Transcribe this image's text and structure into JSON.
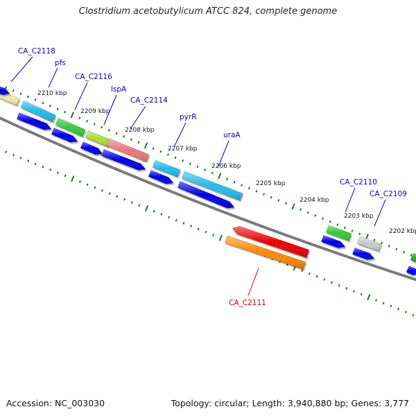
{
  "title": "Clostridium acetobutylicum ATCC 824, complete genome",
  "accession": "Accession: NC_003030",
  "summary": "Topology: circular; Length: 3,940,880 bp; Genes: 3,777",
  "colors": {
    "backbone": "#808080",
    "tick": "#1a7a1a",
    "label_blue": "#0000cc",
    "label_red": "#cc0000",
    "cds": "#0000ee"
  },
  "kbp_ticks": [
    "2210 kbp",
    "2209 kbp",
    "2208 kbp",
    "2207 kbp",
    "2206 kbp",
    "2205 kbp",
    "2204 kbp",
    "2203 kbp",
    "2202 kbp"
  ],
  "gene_labels": [
    "CA_C2118",
    "pfs",
    "CA_C2116",
    "lspA",
    "CA_C2114",
    "pyrR",
    "uraA",
    "CA_C2110",
    "CA_C2109",
    "CA_C2111"
  ],
  "features": [
    {
      "track": "forward",
      "color": "#f0e8a8",
      "type": "gene"
    },
    {
      "track": "forward",
      "color": "#22bbee",
      "type": "gene"
    },
    {
      "track": "forward",
      "color": "#33cc33",
      "type": "gene"
    },
    {
      "track": "forward",
      "color": "#aadd33",
      "type": "gene"
    },
    {
      "track": "forward",
      "color": "#ee7777",
      "type": "gene"
    },
    {
      "track": "forward",
      "color": "#22bbee",
      "type": "gene"
    },
    {
      "track": "forward",
      "color": "#22bbee",
      "type": "gene"
    },
    {
      "track": "forward",
      "color": "#33cc33",
      "type": "gene"
    },
    {
      "track": "forward",
      "color": "#c8c8c8",
      "type": "gene"
    },
    {
      "track": "forward",
      "color": "#22aa22",
      "type": "gene"
    },
    {
      "track": "reverse",
      "color": "#ee0000",
      "type": "gene"
    },
    {
      "track": "reverse",
      "color": "#ff8800",
      "type": "gene"
    }
  ]
}
